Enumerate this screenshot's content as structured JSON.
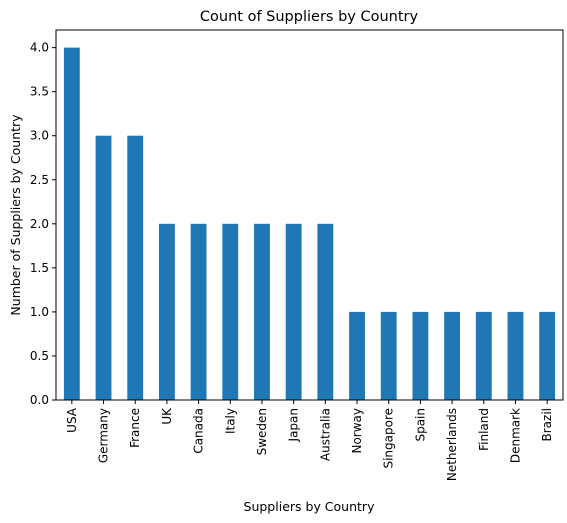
{
  "chart_data": {
    "type": "bar",
    "title": "Count of Suppliers by Country",
    "xlabel": "Suppliers by Country",
    "ylabel": "Number of Suppliers by Country",
    "categories": [
      "USA",
      "Germany",
      "France",
      "UK",
      "Canada",
      "Italy",
      "Sweden",
      "Japan",
      "Australia",
      "Norway",
      "Singapore",
      "Spain",
      "Netherlands",
      "Finland",
      "Denmark",
      "Brazil"
    ],
    "values": [
      4,
      3,
      3,
      2,
      2,
      2,
      2,
      2,
      2,
      1,
      1,
      1,
      1,
      1,
      1,
      1
    ],
    "yticks": [
      "0.0",
      "0.5",
      "1.0",
      "1.5",
      "2.0",
      "2.5",
      "3.0",
      "3.5",
      "4.0"
    ],
    "ylim": [
      0,
      4.2
    ],
    "grid": false,
    "legend": false,
    "bar_color": "#1f77b4"
  }
}
